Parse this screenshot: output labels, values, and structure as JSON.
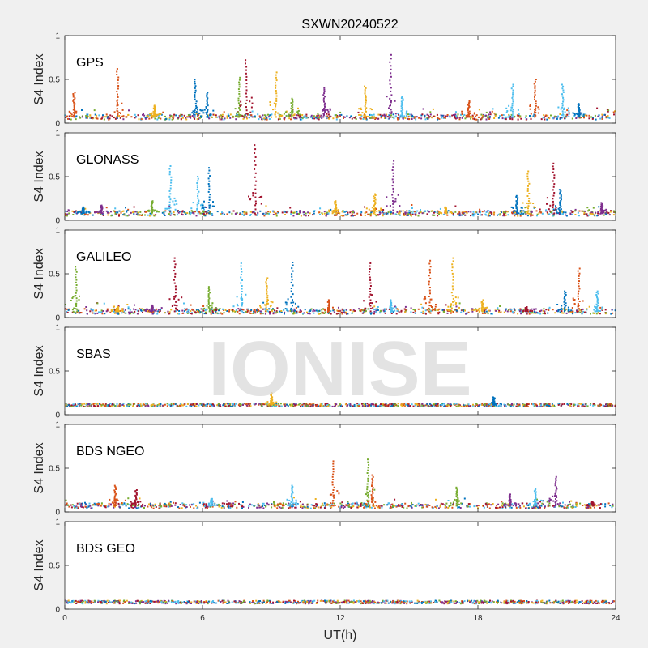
{
  "chart_data": {
    "type": "scatter",
    "title": "SXWN20240522",
    "xlabel": "UT(h)",
    "ylabel": "S4 Index",
    "xlim": [
      0,
      24
    ],
    "ylim": [
      0,
      1
    ],
    "xticks": [
      "0",
      "6",
      "12",
      "18",
      "24"
    ],
    "yticks": [
      "0",
      "0.5",
      "1"
    ],
    "watermark": "IONISE",
    "colors": {
      "blue": "#0072bd",
      "orange": "#d95319",
      "yellow": "#edb120",
      "purple": "#7e2f8e",
      "green": "#77ac30",
      "cyan": "#4dbeee",
      "crimson": "#a2142f"
    },
    "panels": [
      {
        "label": "GPS",
        "baseline": 0.07,
        "spikes": [
          {
            "x": 0.4,
            "peak": 0.35,
            "color": "orange"
          },
          {
            "x": 2.3,
            "peak": 0.62,
            "color": "orange"
          },
          {
            "x": 3.9,
            "peak": 0.2,
            "color": "yellow"
          },
          {
            "x": 5.7,
            "peak": 0.5,
            "color": "blue"
          },
          {
            "x": 6.2,
            "peak": 0.35,
            "color": "blue"
          },
          {
            "x": 7.6,
            "peak": 0.52,
            "color": "green"
          },
          {
            "x": 7.9,
            "peak": 0.72,
            "color": "crimson"
          },
          {
            "x": 9.2,
            "peak": 0.58,
            "color": "yellow"
          },
          {
            "x": 9.9,
            "peak": 0.28,
            "color": "green"
          },
          {
            "x": 11.3,
            "peak": 0.4,
            "color": "purple"
          },
          {
            "x": 13.1,
            "peak": 0.42,
            "color": "yellow"
          },
          {
            "x": 14.2,
            "peak": 0.78,
            "color": "purple"
          },
          {
            "x": 14.7,
            "peak": 0.3,
            "color": "cyan"
          },
          {
            "x": 17.6,
            "peak": 0.25,
            "color": "orange"
          },
          {
            "x": 19.5,
            "peak": 0.44,
            "color": "cyan"
          },
          {
            "x": 20.5,
            "peak": 0.5,
            "color": "orange"
          },
          {
            "x": 21.7,
            "peak": 0.44,
            "color": "cyan"
          },
          {
            "x": 22.4,
            "peak": 0.22,
            "color": "blue"
          }
        ]
      },
      {
        "label": "GLONASS",
        "baseline": 0.08,
        "spikes": [
          {
            "x": 0.8,
            "peak": 0.15,
            "color": "blue"
          },
          {
            "x": 1.6,
            "peak": 0.17,
            "color": "purple"
          },
          {
            "x": 3.8,
            "peak": 0.22,
            "color": "green"
          },
          {
            "x": 4.6,
            "peak": 0.62,
            "color": "cyan"
          },
          {
            "x": 5.8,
            "peak": 0.5,
            "color": "cyan"
          },
          {
            "x": 6.3,
            "peak": 0.6,
            "color": "blue"
          },
          {
            "x": 8.3,
            "peak": 0.86,
            "color": "crimson"
          },
          {
            "x": 11.8,
            "peak": 0.22,
            "color": "yellow"
          },
          {
            "x": 13.5,
            "peak": 0.3,
            "color": "yellow"
          },
          {
            "x": 14.3,
            "peak": 0.68,
            "color": "purple"
          },
          {
            "x": 16.6,
            "peak": 0.15,
            "color": "yellow"
          },
          {
            "x": 19.7,
            "peak": 0.28,
            "color": "blue"
          },
          {
            "x": 20.2,
            "peak": 0.56,
            "color": "yellow"
          },
          {
            "x": 21.3,
            "peak": 0.65,
            "color": "crimson"
          },
          {
            "x": 21.6,
            "peak": 0.35,
            "color": "blue"
          },
          {
            "x": 23.4,
            "peak": 0.2,
            "color": "purple"
          }
        ]
      },
      {
        "label": "GALILEO",
        "baseline": 0.07,
        "spikes": [
          {
            "x": 0.5,
            "peak": 0.58,
            "color": "green"
          },
          {
            "x": 2.3,
            "peak": 0.12,
            "color": "yellow"
          },
          {
            "x": 3.8,
            "peak": 0.14,
            "color": "purple"
          },
          {
            "x": 4.8,
            "peak": 0.68,
            "color": "crimson"
          },
          {
            "x": 6.3,
            "peak": 0.35,
            "color": "green"
          },
          {
            "x": 7.7,
            "peak": 0.62,
            "color": "cyan"
          },
          {
            "x": 8.8,
            "peak": 0.45,
            "color": "yellow"
          },
          {
            "x": 9.9,
            "peak": 0.63,
            "color": "blue"
          },
          {
            "x": 11.5,
            "peak": 0.2,
            "color": "orange"
          },
          {
            "x": 13.3,
            "peak": 0.62,
            "color": "crimson"
          },
          {
            "x": 14.2,
            "peak": 0.2,
            "color": "cyan"
          },
          {
            "x": 15.9,
            "peak": 0.65,
            "color": "orange"
          },
          {
            "x": 16.9,
            "peak": 0.68,
            "color": "yellow"
          },
          {
            "x": 18.2,
            "peak": 0.2,
            "color": "yellow"
          },
          {
            "x": 20.1,
            "peak": 0.12,
            "color": "crimson"
          },
          {
            "x": 21.8,
            "peak": 0.3,
            "color": "blue"
          },
          {
            "x": 22.4,
            "peak": 0.56,
            "color": "orange"
          },
          {
            "x": 23.2,
            "peak": 0.3,
            "color": "cyan"
          }
        ]
      },
      {
        "label": "SBAS",
        "baseline": 0.11,
        "spikes": [
          {
            "x": 9.0,
            "peak": 0.25,
            "color": "yellow"
          },
          {
            "x": 18.7,
            "peak": 0.2,
            "color": "blue"
          }
        ]
      },
      {
        "label": "BDS NGEO",
        "baseline": 0.07,
        "spikes": [
          {
            "x": 2.2,
            "peak": 0.3,
            "color": "orange"
          },
          {
            "x": 3.1,
            "peak": 0.25,
            "color": "crimson"
          },
          {
            "x": 6.4,
            "peak": 0.15,
            "color": "cyan"
          },
          {
            "x": 9.9,
            "peak": 0.3,
            "color": "cyan"
          },
          {
            "x": 11.7,
            "peak": 0.58,
            "color": "orange"
          },
          {
            "x": 13.2,
            "peak": 0.6,
            "color": "green"
          },
          {
            "x": 13.4,
            "peak": 0.42,
            "color": "orange"
          },
          {
            "x": 17.1,
            "peak": 0.28,
            "color": "green"
          },
          {
            "x": 19.4,
            "peak": 0.2,
            "color": "purple"
          },
          {
            "x": 20.5,
            "peak": 0.26,
            "color": "cyan"
          },
          {
            "x": 21.4,
            "peak": 0.4,
            "color": "purple"
          },
          {
            "x": 23.0,
            "peak": 0.12,
            "color": "crimson"
          }
        ]
      },
      {
        "label": "BDS GEO",
        "baseline": 0.08,
        "spikes": []
      }
    ]
  }
}
